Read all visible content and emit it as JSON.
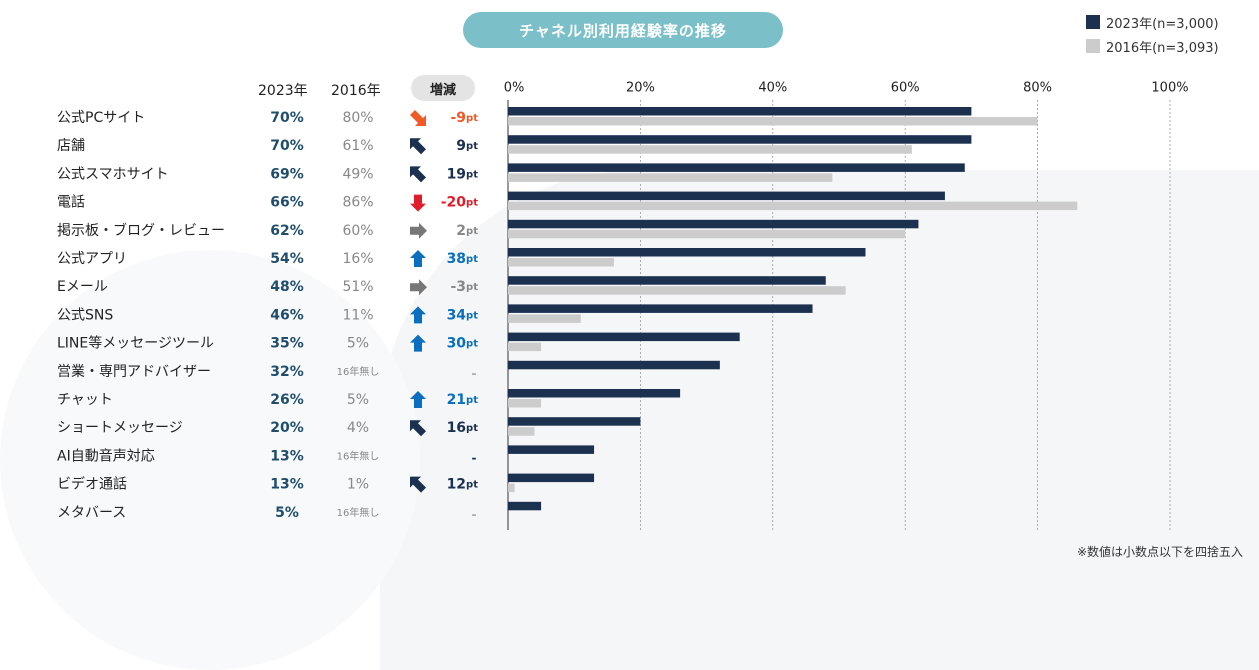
{
  "title": "チャネル別利用経験率の推移",
  "legend": {
    "series_2023": "2023年(n=3,000)",
    "series_2016": "2016年(n=3,093)"
  },
  "headers": {
    "col_2023": "2023年",
    "col_2016": "2016年",
    "col_diff": "増減"
  },
  "footnote": "※数値は小数点以下を四捨五入",
  "colors": {
    "navy": "#1c3050",
    "gray": "#cccccc",
    "up": "#0a6fbf",
    "down_red": "#e01e2b",
    "diag_down": "#f05a28",
    "diag_up": "#1c3050",
    "flat": "#777777"
  },
  "chart_data": {
    "type": "bar",
    "orientation": "horizontal",
    "xlim": [
      0,
      100
    ],
    "x_ticks": [
      "0%",
      "20%",
      "40%",
      "60%",
      "80%",
      "100%"
    ],
    "categories": [
      "公式PCサイト",
      "店舗",
      "公式スマホサイト",
      "電話",
      "掲示板・ブログ・レビュー",
      "公式アプリ",
      "Eメール",
      "公式SNS",
      "LINE等メッセージツール",
      "営業・専門アドバイザー",
      "チャット",
      "ショートメッセージ",
      "AI自動音声対応",
      "ビデオ通話",
      "メタバース"
    ],
    "series": [
      {
        "name": "2023年(n=3,000)",
        "values": [
          70,
          70,
          69,
          66,
          62,
          54,
          48,
          46,
          35,
          32,
          26,
          20,
          13,
          13,
          5
        ],
        "labels": [
          "70%",
          "70%",
          "69%",
          "66%",
          "62%",
          "54%",
          "48%",
          "46%",
          "35%",
          "32%",
          "26%",
          "20%",
          "13%",
          "13%",
          "5%"
        ]
      },
      {
        "name": "2016年(n=3,093)",
        "values": [
          80,
          61,
          49,
          86,
          60,
          16,
          51,
          11,
          5,
          null,
          5,
          4,
          null,
          1,
          null
        ],
        "labels": [
          "80%",
          "61%",
          "49%",
          "86%",
          "60%",
          "16%",
          "51%",
          "11%",
          "5%",
          "16年無し",
          "5%",
          "4%",
          "16年無し",
          "1%",
          "16年無し"
        ]
      }
    ],
    "diff": {
      "labels": [
        "-9pt",
        "9pt",
        "19pt",
        "-20pt",
        "2pt",
        "38pt",
        "-3pt",
        "34pt",
        "30pt",
        "-",
        "21pt",
        "16pt",
        "-",
        "12pt",
        "-"
      ],
      "arrows": [
        "diag_down",
        "diag_up",
        "diag_up",
        "down_red",
        "flat",
        "up",
        "flat",
        "up",
        "up",
        "none",
        "up",
        "diag_up",
        "none",
        "diag_up",
        "none"
      ]
    }
  }
}
